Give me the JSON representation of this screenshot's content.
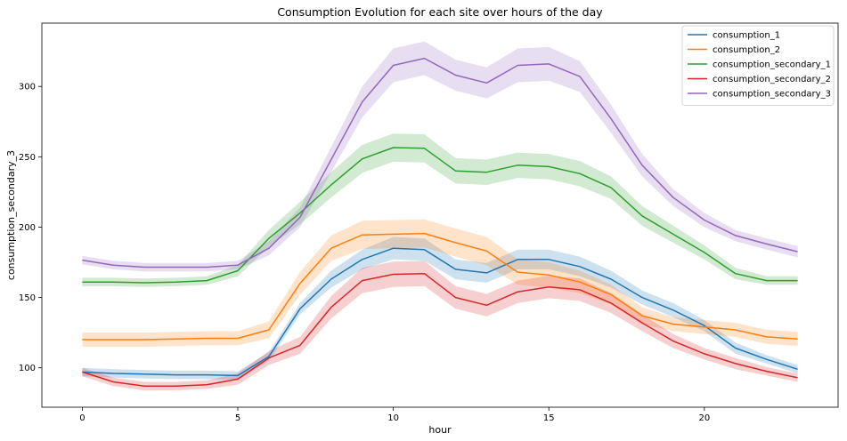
{
  "chart_data": {
    "type": "line",
    "title": "Consumption Evolution for each site over hours of the day",
    "xlabel": "hour",
    "ylabel": "consumption_secondary_3",
    "xlim": [
      -1.3,
      24.3
    ],
    "ylim": [
      72,
      345
    ],
    "xticks": [
      0,
      5,
      10,
      15,
      20
    ],
    "yticks": [
      100,
      150,
      200,
      250,
      300
    ],
    "grid": false,
    "legend_position": "top-right",
    "x": [
      0,
      1,
      2,
      3,
      4,
      5,
      6,
      7,
      8,
      9,
      10,
      11,
      12,
      13,
      14,
      15,
      16,
      17,
      18,
      19,
      20,
      21,
      22,
      23
    ],
    "series": [
      {
        "name": "consumption_1",
        "color": "#1f77b4",
        "values": [
          97,
          96,
          95.5,
          95,
          95,
          94.5,
          108,
          142,
          163,
          177,
          185,
          184,
          170,
          167.5,
          177,
          177,
          172,
          163,
          150,
          141,
          130,
          114,
          106,
          99
        ],
        "band": [
          3,
          3,
          3,
          3,
          3,
          3,
          3,
          4,
          6,
          7,
          8,
          8,
          7,
          7,
          7,
          7,
          7,
          6,
          5,
          5,
          4,
          4,
          3,
          3
        ]
      },
      {
        "name": "consumption_2",
        "color": "#ff7f0e",
        "values": [
          120,
          120,
          120,
          120.5,
          121,
          121,
          127,
          160,
          185,
          194.5,
          195,
          195.5,
          189,
          183,
          168,
          166,
          161,
          152,
          137,
          131,
          129,
          127,
          122,
          120.5
        ],
        "band": [
          5,
          5,
          5,
          5,
          5,
          5,
          6,
          8,
          9,
          10,
          10,
          10,
          10,
          10,
          9,
          9,
          8,
          7,
          6,
          5,
          5,
          5,
          5,
          5
        ]
      },
      {
        "name": "consumption_secondary_1",
        "color": "#2ca02c",
        "values": [
          161,
          161,
          160.5,
          161,
          162,
          169,
          192,
          210,
          230,
          248.5,
          256.5,
          256,
          240,
          239,
          244,
          243,
          238,
          228,
          208,
          195,
          182,
          167,
          162,
          162
        ],
        "band": [
          3,
          3,
          3,
          3,
          3,
          4,
          6,
          8,
          9,
          10,
          10,
          10,
          9,
          9,
          9,
          9,
          9,
          8,
          7,
          6,
          5,
          4,
          3,
          3
        ]
      },
      {
        "name": "consumption_secondary_2",
        "color": "#d62728",
        "values": [
          97,
          90,
          87,
          87,
          88,
          92,
          107,
          116,
          143,
          162,
          166.5,
          167,
          150,
          144.5,
          154,
          157.5,
          155.5,
          146,
          132,
          119,
          110,
          103,
          97.5,
          93
        ],
        "band": [
          3,
          3,
          3,
          3,
          3,
          4,
          5,
          6,
          8,
          9,
          9,
          9,
          8,
          8,
          8,
          8,
          8,
          7,
          6,
          5,
          4,
          4,
          3,
          3
        ]
      },
      {
        "name": "consumption_secondary_3",
        "color": "#9467bd",
        "values": [
          176.5,
          173,
          171.5,
          171.5,
          171.5,
          173,
          185,
          207,
          248,
          289,
          315,
          320,
          308,
          302.5,
          315,
          316,
          307,
          277,
          244,
          221,
          205,
          194,
          188,
          182.5
        ],
        "band": [
          3,
          3,
          3,
          3,
          3,
          3,
          5,
          7,
          9,
          11,
          12,
          12,
          11,
          11,
          12,
          12,
          11,
          10,
          8,
          6,
          5,
          4,
          4,
          4
        ]
      }
    ]
  }
}
